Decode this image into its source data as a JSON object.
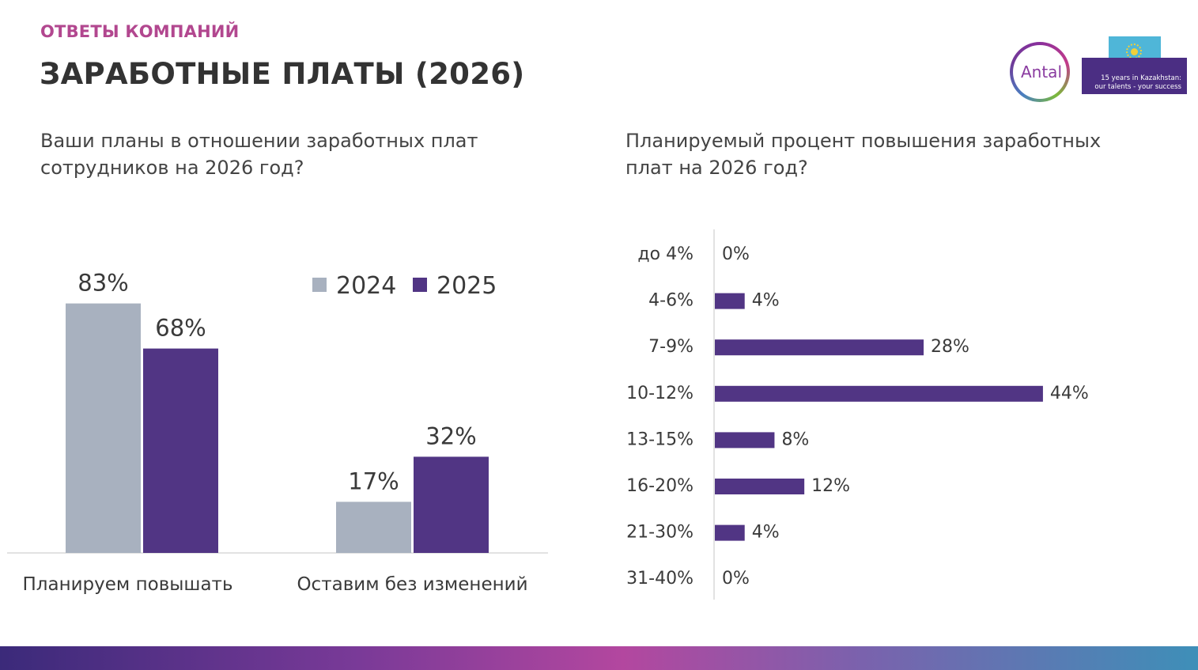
{
  "header": {
    "section": "ОТВЕТЫ КОМПАНИЙ",
    "title": "ЗАРАБОТНЫЕ ПЛАТЫ (2026)"
  },
  "logo": {
    "brand": "Antal",
    "tagline_line1": "15 years in Kazakhstan:",
    "tagline_line2": "our talents - your success"
  },
  "questions": {
    "left_line1": "Ваши планы в отношении заработных плат",
    "left_line2": "сотрудников на 2026 год?",
    "right_line1": "Планируемый процент повышения заработных",
    "right_line2": "плат на 2026 год?"
  },
  "colors": {
    "series_2024": "#a8b1bf",
    "series_2025": "#513584",
    "text": "#3a3a3a",
    "axis": "#d9d9d9"
  },
  "chart_data": [
    {
      "type": "bar",
      "categories": [
        "Планируем повышать",
        "Оставим без изменений"
      ],
      "series": [
        {
          "name": "2024",
          "values": [
            83,
            17
          ],
          "labels": [
            "83%",
            "17%"
          ]
        },
        {
          "name": "2025",
          "values": [
            68,
            32
          ],
          "labels": [
            "68%",
            "32%"
          ]
        }
      ],
      "legend": "top-right",
      "ylim": [
        0,
        100
      ]
    },
    {
      "type": "bar",
      "orientation": "horizontal",
      "categories": [
        "до 4%",
        "4-6%",
        "7-9%",
        "10-12%",
        "13-15%",
        "16-20%",
        "21-30%",
        "31-40%"
      ],
      "values": [
        0,
        4,
        28,
        44,
        8,
        12,
        4,
        0
      ],
      "labels": [
        "0%",
        "4%",
        "28%",
        "44%",
        "8%",
        "12%",
        "4%",
        "0%"
      ],
      "xlim": [
        0,
        44
      ]
    }
  ]
}
